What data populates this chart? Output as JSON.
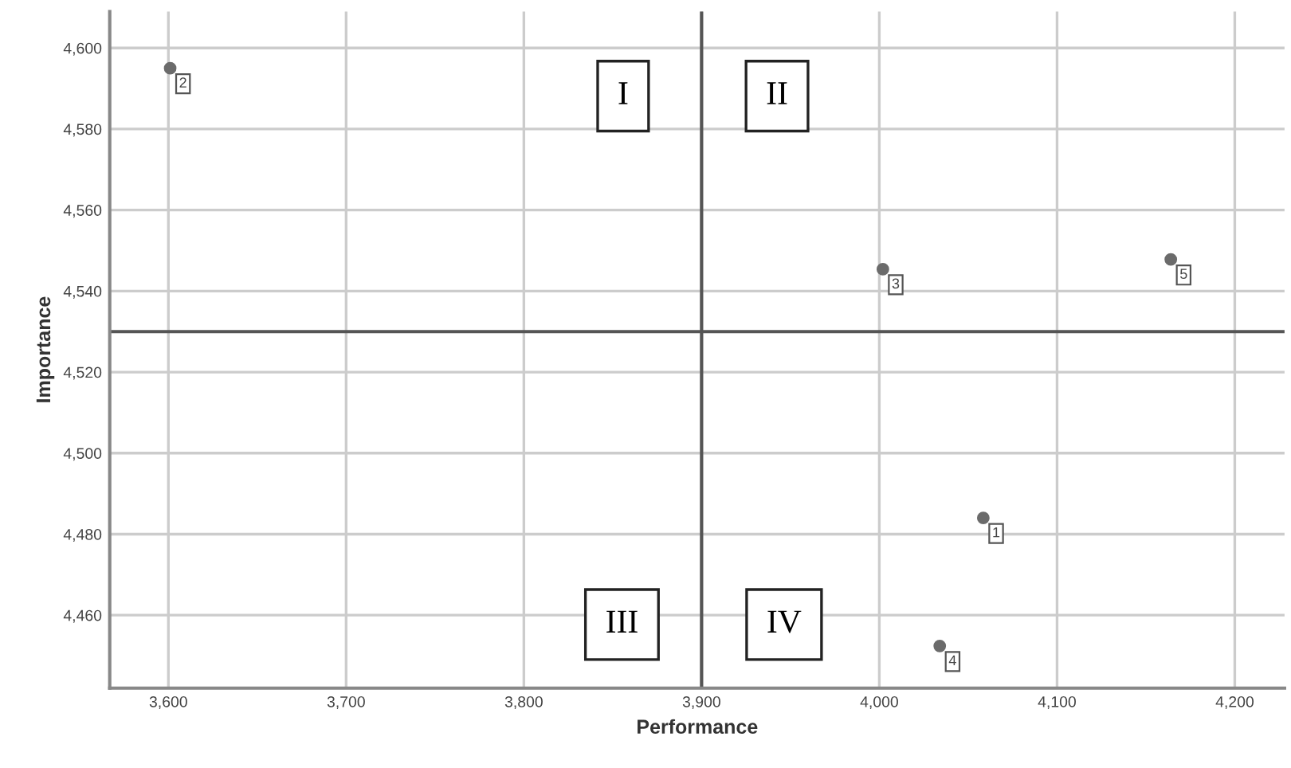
{
  "chart_data": {
    "type": "scatter",
    "xlabel": "Performance",
    "ylabel": "Importance",
    "x": [
      4058.5,
      3601,
      4002,
      4034,
      4164
    ],
    "series": [
      {
        "color": "#6b6b6b",
        "values": [
          4484,
          4595,
          4545.4,
          4452.4,
          4547.8
        ]
      }
    ],
    "xlim": [
      3567,
      4228
    ],
    "ylim": [
      4442,
      4609
    ],
    "xticks": [
      {
        "value": 3600,
        "label": "3,600"
      },
      {
        "value": 3700,
        "label": "3,700"
      },
      {
        "value": 3800,
        "label": "3,800"
      },
      {
        "value": 3900,
        "label": "3,900"
      },
      {
        "value": 4000,
        "label": "4,000"
      },
      {
        "value": 4100,
        "label": "4,100"
      },
      {
        "value": 4200,
        "label": "4,200"
      }
    ],
    "yticks": [
      {
        "value": 4460,
        "label": "4,460"
      },
      {
        "value": 4480,
        "label": "4,480"
      },
      {
        "value": 4500,
        "label": "4,500"
      },
      {
        "value": 4520,
        "label": "4,520"
      },
      {
        "value": 4540,
        "label": "4,540"
      },
      {
        "value": 4560,
        "label": "4,560"
      },
      {
        "value": 4580,
        "label": "4,580"
      },
      {
        "value": 4600,
        "label": "4,600"
      }
    ],
    "ref_lines": [
      {
        "axis": "x",
        "value": 3900,
        "color": "#555555"
      },
      {
        "axis": "y",
        "value": 4530,
        "color": "#555555"
      }
    ],
    "annotations": [
      "I",
      "II",
      "III",
      "IV",
      {
        "text": "1",
        "x": 4058.5,
        "y": 4484
      },
      {
        "text": "2",
        "x": 3601,
        "y": 4595
      },
      {
        "text": "3",
        "x": 4002,
        "y": 4545.4
      },
      {
        "text": "4",
        "x": 4034,
        "y": 4452.4
      },
      {
        "text": "5",
        "x": 4164,
        "y": 4547.8
      }
    ],
    "grid": true,
    "marker": "circle"
  }
}
